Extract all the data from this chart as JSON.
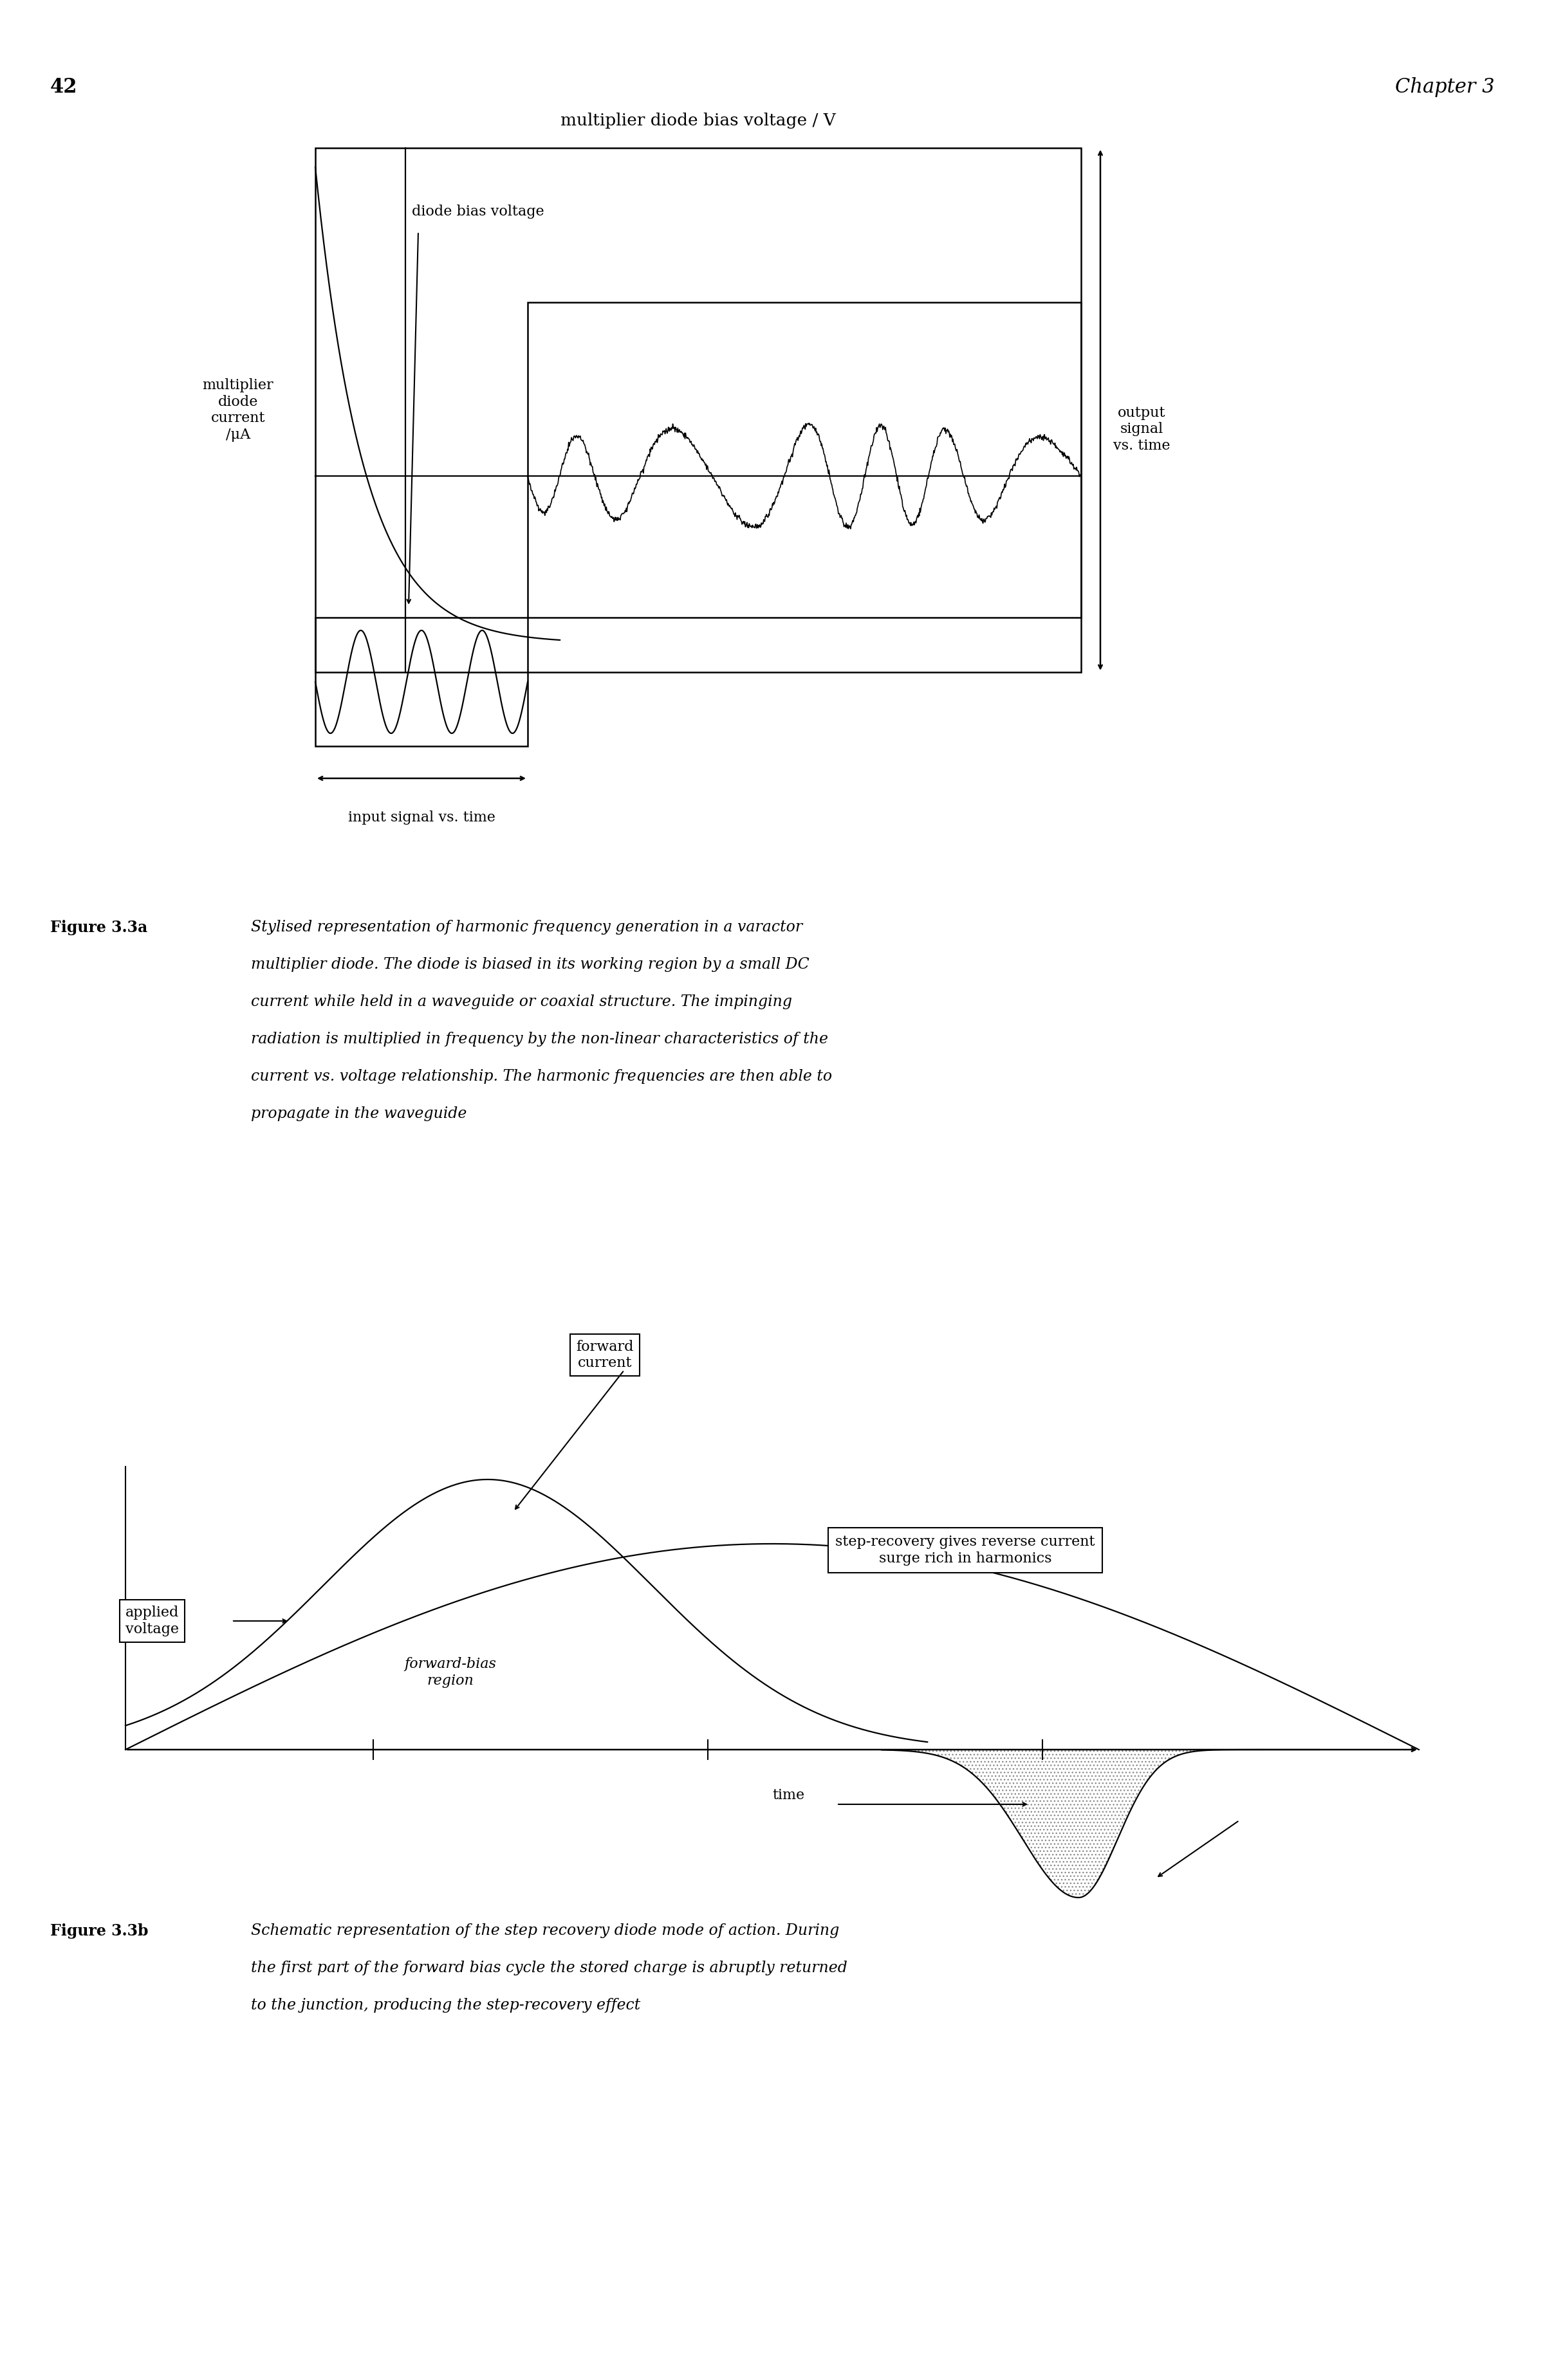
{
  "page_number": "42",
  "chapter": "Chapter 3",
  "fig3a_title": "multiplier diode bias voltage / V",
  "fig3a_ylabel": "multiplier\ndiode\ncurrent\n/μA",
  "fig3a_output_label": "output\nsignal\nvs. time",
  "fig3a_input_label": "input signal vs. time",
  "fig3a_diode_bias_label": "diode bias voltage",
  "fig3a_caption_bold": "Figure 3.3a",
  "fig3b_forward_label": "forward\ncurrent",
  "fig3b_applied_label": "applied\nvoltage",
  "fig3b_step_recovery_label": "step-recovery gives reverse current\nsurge rich in harmonics",
  "fig3b_forward_bias_label": "forward-bias\nregion",
  "fig3b_time_label": "time",
  "fig3b_caption_bold": "Figure 3.3b",
  "bg_color": "#ffffff",
  "fig3a_caption_lines": [
    "Stylised representation of harmonic frequency generation in a varactor",
    "multiplier diode. The diode is biased in its working region by a small DC",
    "current while held in a waveguide or coaxial structure. The impinging",
    "radiation is multiplied in frequency by the non-linear characteristics of the",
    "current vs. voltage relationship. The harmonic frequencies are then able to",
    "propagate in the waveguide"
  ],
  "fig3b_caption_lines": [
    "Schematic representation of the step recovery diode mode of action. During",
    "the first part of the forward bias cycle the stored charge is abruptly returned",
    "to the junction, producing the step-recovery effect"
  ]
}
